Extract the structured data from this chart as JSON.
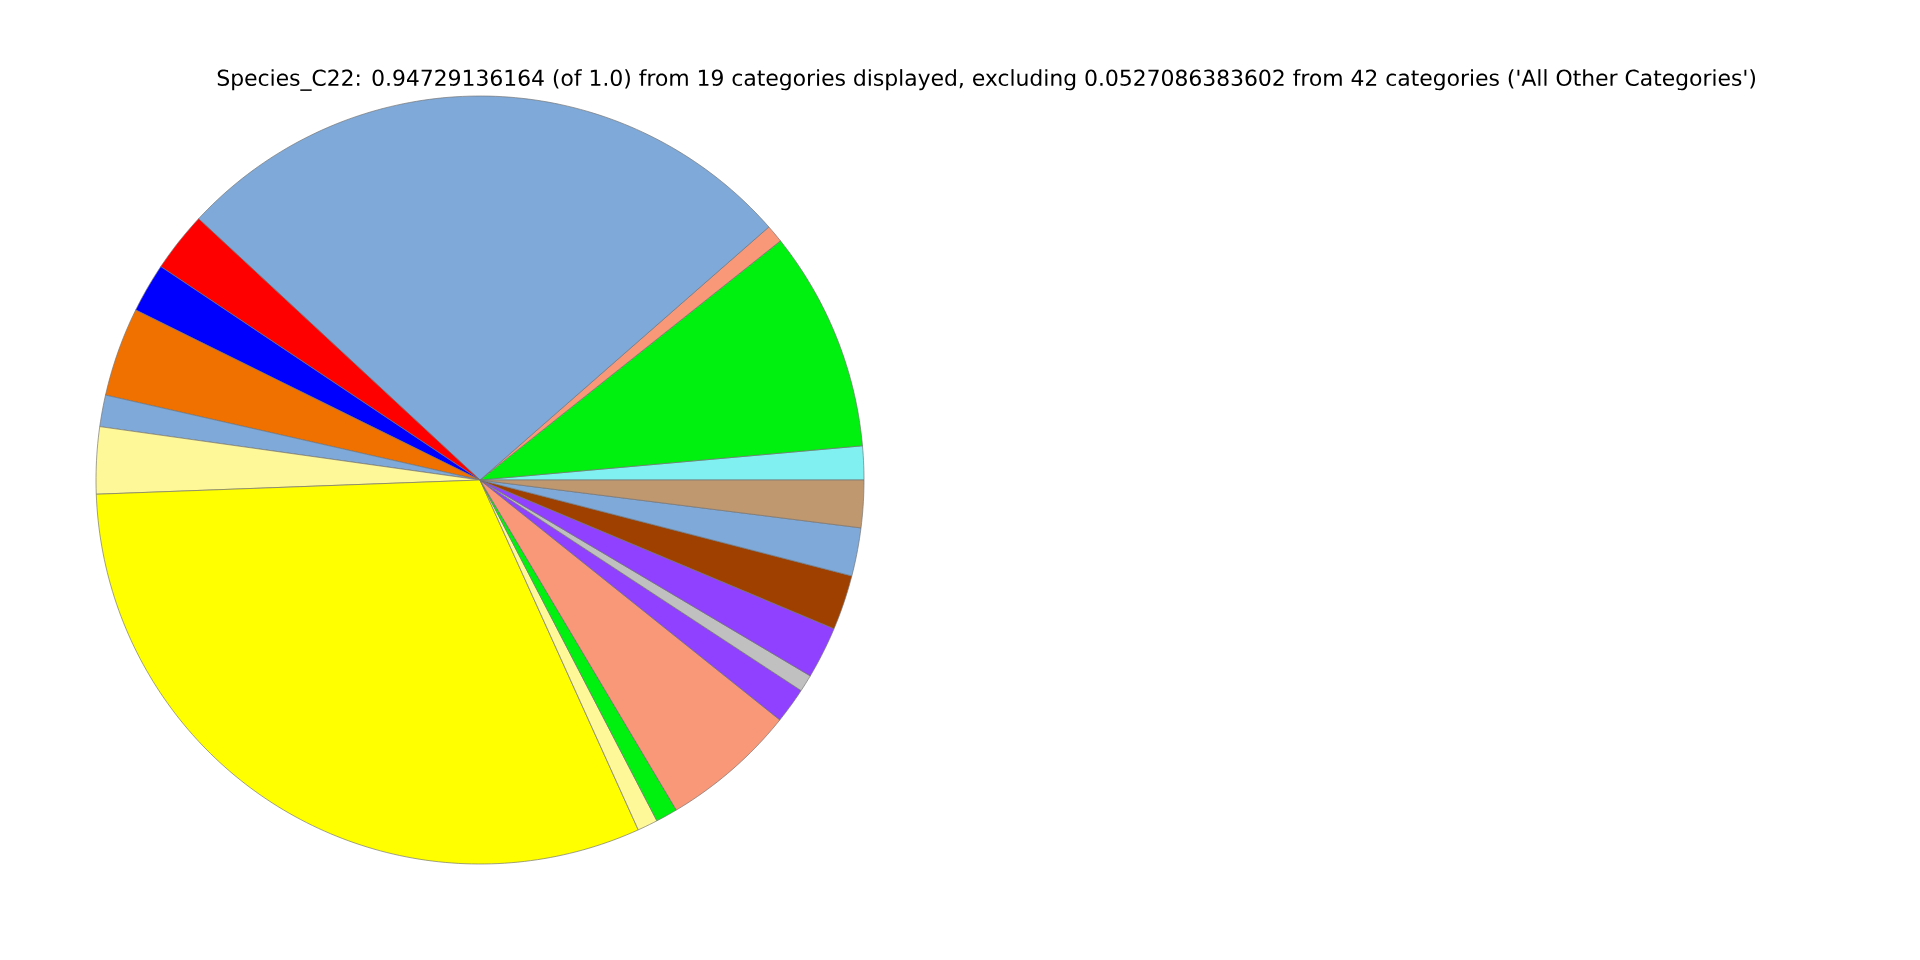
{
  "chart_data": {
    "type": "pie",
    "title": "Species_C22: 0.94729136164 (of 1.0) from 19 categories displayed, excluding 0.0527086383602 from 42 categories ('All Other Categories')",
    "categories": [
      null,
      null,
      null,
      null,
      null,
      null,
      null,
      null,
      null,
      null,
      null,
      null,
      null,
      null,
      null,
      null,
      null,
      null,
      null
    ],
    "values": [
      1.42,
      9.28,
      0.75,
      26.64,
      2.53,
      2.08,
      3.75,
      1.33,
      2.81,
      31.17,
      0.86,
      0.92,
      5.72,
      1.5,
      0.72,
      2.19,
      2.31,
      2.03,
      1.99
    ],
    "colors": [
      "#80f0f0",
      "#00f010",
      "#f89878",
      "#7ea9d8",
      "#ff0000",
      "#0000ff",
      "#f07000",
      "#7ea9d8",
      "#fff898",
      "#ffff00",
      "#fff898",
      "#00f010",
      "#f89878",
      "#9040ff",
      "#c0c0c0",
      "#9040ff",
      "#a04000",
      "#7ea9d8",
      "#c09870"
    ]
  }
}
